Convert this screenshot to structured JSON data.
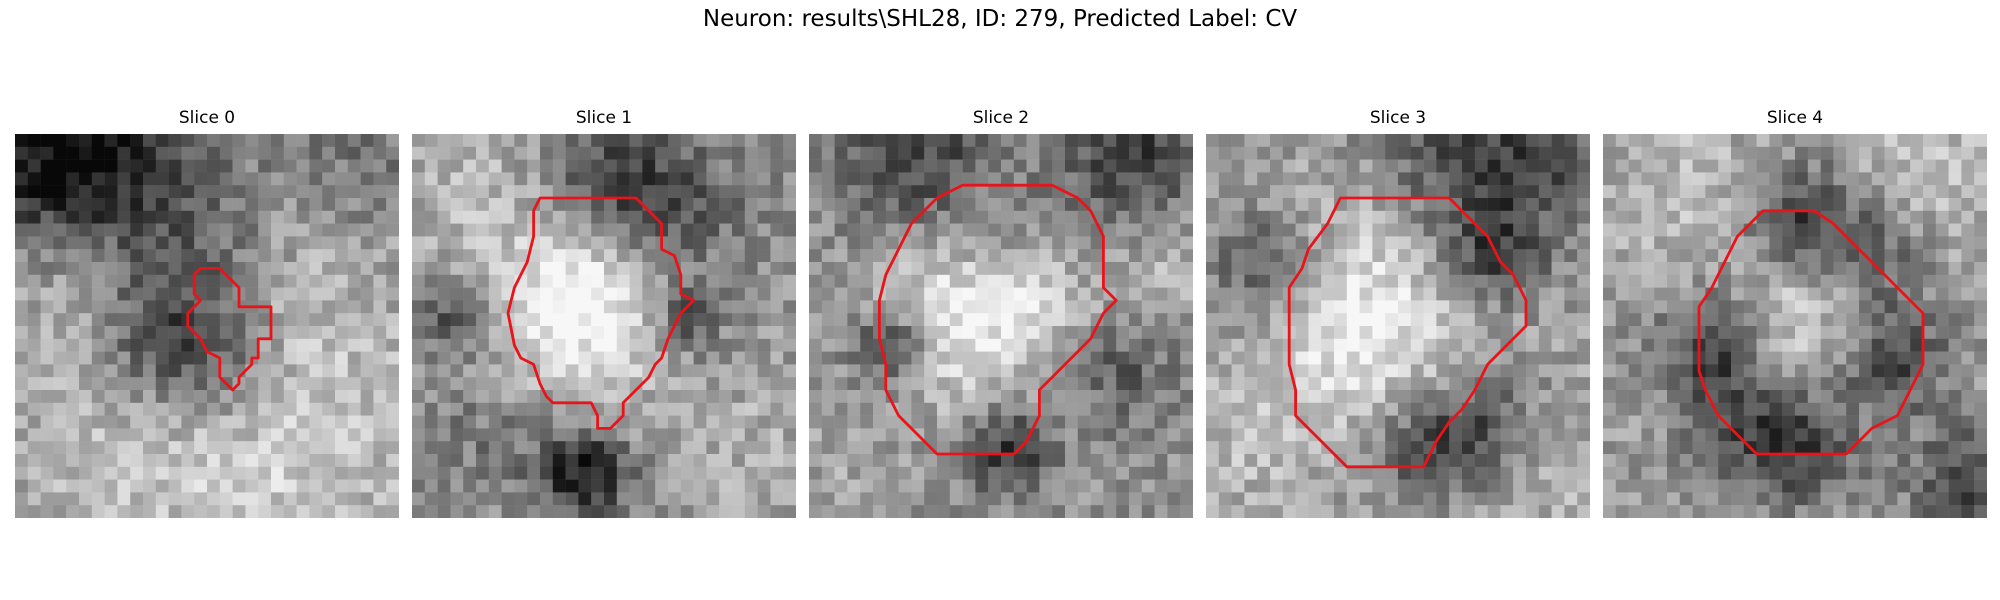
{
  "figure": {
    "title": "Neuron: results\\SHL28, ID: 279, Predicted Label: CV"
  },
  "panels": [
    {
      "title": "Slice 0"
    },
    {
      "title": "Slice 1"
    },
    {
      "title": "Slice 2"
    },
    {
      "title": "Slice 3"
    },
    {
      "title": "Slice 4"
    }
  ],
  "colors": {
    "contour": "#e8141a",
    "background": "#ffffff"
  }
}
